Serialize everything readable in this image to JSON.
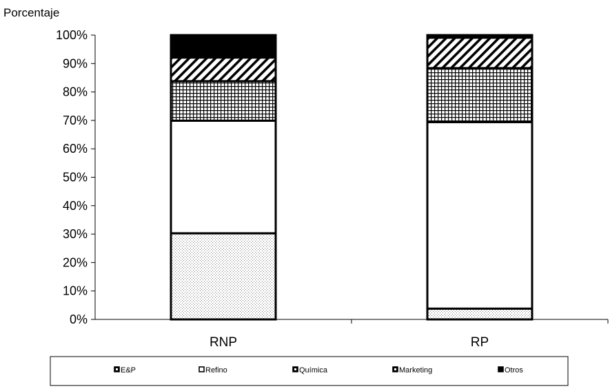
{
  "chart_data": {
    "type": "bar",
    "stacked": true,
    "title": "",
    "xlabel": "",
    "ylabel": "Porcentaje",
    "ylim": [
      0,
      100
    ],
    "yticks": [
      "0%",
      "10%",
      "20%",
      "30%",
      "40%",
      "50%",
      "60%",
      "70%",
      "80%",
      "90%",
      "100%"
    ],
    "categories": [
      "RNP",
      "RP"
    ],
    "series": [
      {
        "name": "E&P",
        "values": [
          30.3,
          3.8
        ],
        "pattern": "dots"
      },
      {
        "name": "Refino",
        "values": [
          39.6,
          65.6
        ],
        "pattern": "white"
      },
      {
        "name": "Química",
        "values": [
          13.9,
          19.0
        ],
        "pattern": "grid"
      },
      {
        "name": "Marketing",
        "values": [
          8.3,
          10.7
        ],
        "pattern": "diagonal"
      },
      {
        "name": "Otros",
        "values": [
          7.9,
          0.9
        ],
        "pattern": "solid"
      }
    ],
    "legend_position": "bottom",
    "grid": false
  }
}
